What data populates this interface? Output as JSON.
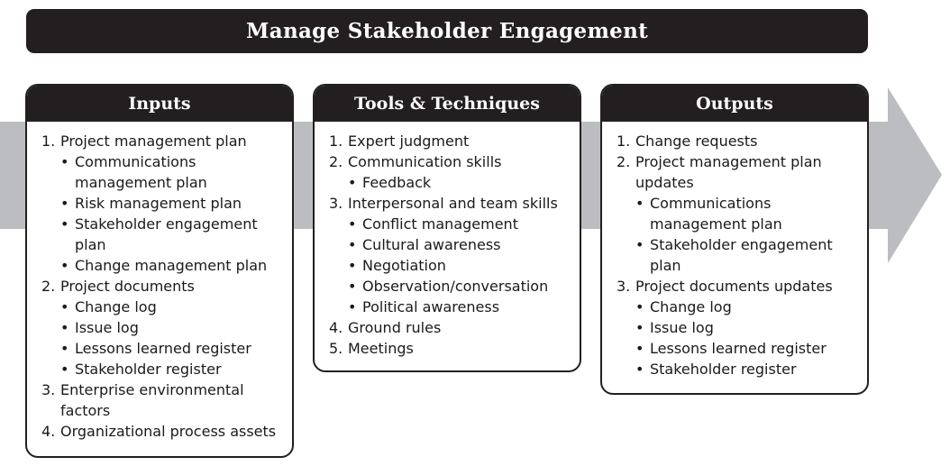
{
  "title": "Manage Stakeholder Engagement",
  "colors": {
    "dark": "#231f20",
    "arrow": "#bcbdc0"
  },
  "columns": [
    {
      "heading": "Inputs",
      "items": [
        {
          "num": "1.",
          "text": "Project management plan",
          "subs": [
            "Communications management plan",
            "Risk management plan",
            "Stakeholder engagement plan",
            "Change management plan"
          ]
        },
        {
          "num": "2.",
          "text": "Project documents",
          "subs": [
            "Change log",
            "Issue log",
            "Lessons learned register",
            "Stakeholder register"
          ]
        },
        {
          "num": "3.",
          "text": "Enterprise environmental factors",
          "subs": []
        },
        {
          "num": "4.",
          "text": "Organizational process assets",
          "subs": []
        }
      ]
    },
    {
      "heading": "Tools & Techniques",
      "items": [
        {
          "num": "1.",
          "text": "Expert judgment",
          "subs": []
        },
        {
          "num": "2.",
          "text": "Communication skills",
          "subs": [
            "Feedback"
          ]
        },
        {
          "num": "3.",
          "text": "Interpersonal and team skills",
          "subs": [
            "Conflict management",
            "Cultural awareness",
            "Negotiation",
            "Observation/conversation",
            "Political awareness"
          ]
        },
        {
          "num": "4.",
          "text": "Ground rules",
          "subs": []
        },
        {
          "num": "5.",
          "text": "Meetings",
          "subs": []
        }
      ]
    },
    {
      "heading": "Outputs",
      "items": [
        {
          "num": "1.",
          "text": "Change requests",
          "subs": []
        },
        {
          "num": "2.",
          "text": "Project management plan updates",
          "subs": [
            "Communications management plan",
            "Stakeholder engagement plan"
          ]
        },
        {
          "num": "3.",
          "text": "Project documents updates",
          "subs": [
            "Change log",
            "Issue log",
            "Lessons learned register",
            "Stakeholder register"
          ]
        }
      ]
    }
  ]
}
